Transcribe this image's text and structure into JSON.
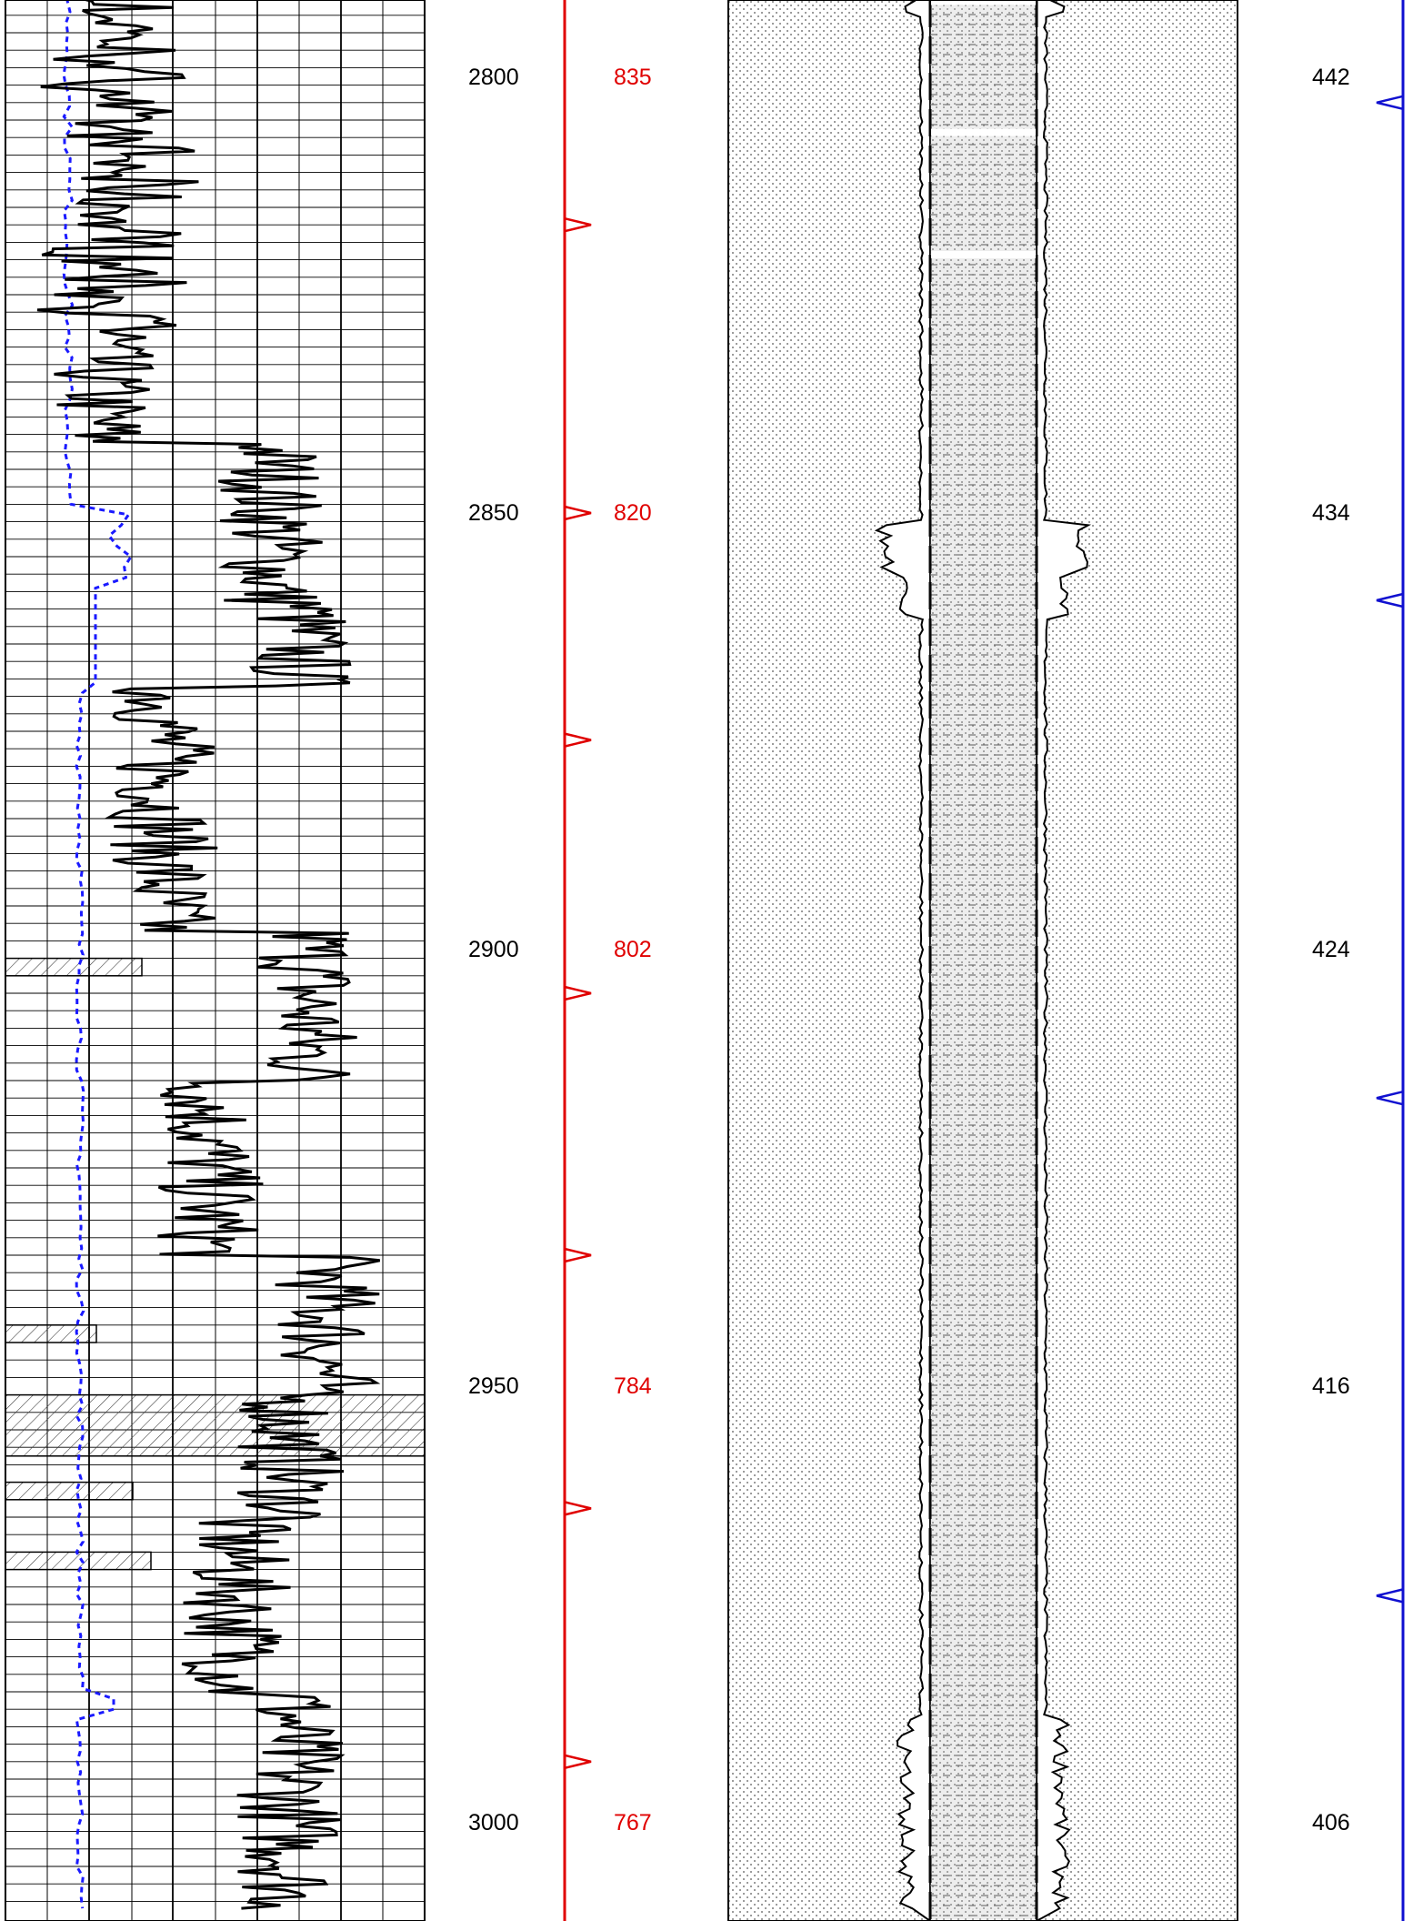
{
  "chart_data": {
    "type": "line",
    "title": "",
    "depth_unit": "",
    "depth_range": [
      2783,
      3010
    ],
    "depth_labels": [
      "2800",
      "2850",
      "2900",
      "2950",
      "3000"
    ],
    "depth_ticks": [
      2800,
      2850,
      2900,
      2950,
      3000
    ],
    "red_track": {
      "color": "#e00000",
      "labels": [
        "835",
        "820",
        "802",
        "784",
        "767"
      ],
      "marker_depths": [
        2817,
        2850,
        2876,
        2905,
        2935,
        2964,
        2993
      ]
    },
    "blue_track": {
      "color": "#0000e0",
      "labels": [
        "442",
        "434",
        "424",
        "416",
        "406"
      ],
      "marker_depths": [
        2803,
        2860,
        2917,
        2974
      ]
    },
    "hatched_intervals": [
      {
        "top": 2901,
        "bottom": 2903
      },
      {
        "top": 2943,
        "bottom": 2945
      },
      {
        "top": 2951,
        "bottom": 2958
      },
      {
        "top": 2961,
        "bottom": 2963
      },
      {
        "top": 2969,
        "bottom": 2971
      }
    ],
    "grid": true,
    "legend": "none"
  }
}
